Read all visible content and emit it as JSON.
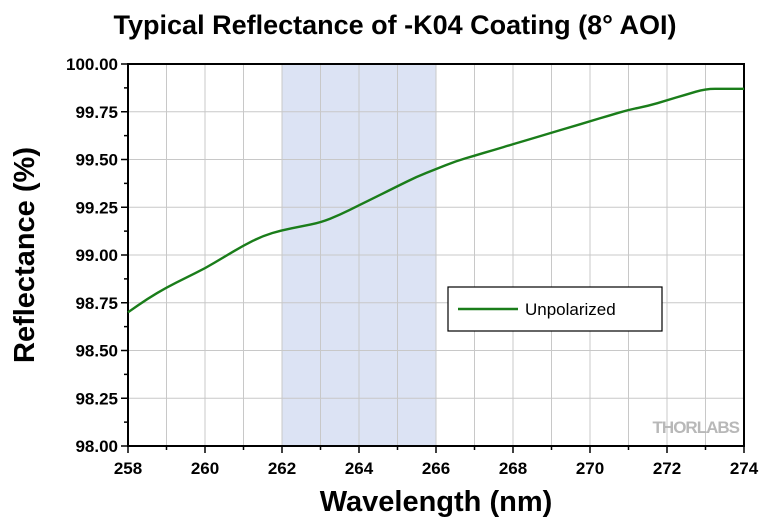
{
  "chart_data": {
    "type": "line",
    "title": "Typical Reflectance of -K04 Coating (8° AOI)",
    "xlabel": "Wavelength (nm)",
    "ylabel": "Reflectance (%)",
    "xlim": [
      258,
      274
    ],
    "ylim": [
      98.0,
      100.0
    ],
    "x_ticks": [
      "258",
      "260",
      "262",
      "264",
      "266",
      "268",
      "270",
      "272",
      "274"
    ],
    "y_ticks": [
      "98.00",
      "98.25",
      "98.50",
      "98.75",
      "99.00",
      "99.25",
      "99.50",
      "99.75",
      "100.00"
    ],
    "grid": true,
    "legend_position": "center-right",
    "highlight_band": [
      262,
      266
    ],
    "colors": {
      "series": "#1a7d1a",
      "band": "#dce3f4",
      "grid": "#c8c8c8",
      "logo": "#b8b8b8"
    },
    "series": [
      {
        "name": "Unpolarized",
        "x": [
          258,
          258.5,
          259,
          259.5,
          260,
          260.5,
          261,
          261.5,
          262,
          262.5,
          263,
          263.5,
          264,
          264.5,
          265,
          265.5,
          266,
          266.5,
          267,
          267.5,
          268,
          268.5,
          269,
          269.5,
          270,
          270.5,
          271,
          271.5,
          272,
          272.5,
          273,
          273.5,
          274
        ],
        "y": [
          98.7,
          98.77,
          98.83,
          98.88,
          98.93,
          98.99,
          99.05,
          99.1,
          99.13,
          99.15,
          99.17,
          99.21,
          99.26,
          99.31,
          99.36,
          99.41,
          99.45,
          99.49,
          99.52,
          99.55,
          99.58,
          99.61,
          99.64,
          99.67,
          99.7,
          99.73,
          99.76,
          99.78,
          99.81,
          99.84,
          99.87,
          99.87,
          99.87
        ]
      }
    ]
  },
  "logo": {
    "text": "THORLABS"
  }
}
